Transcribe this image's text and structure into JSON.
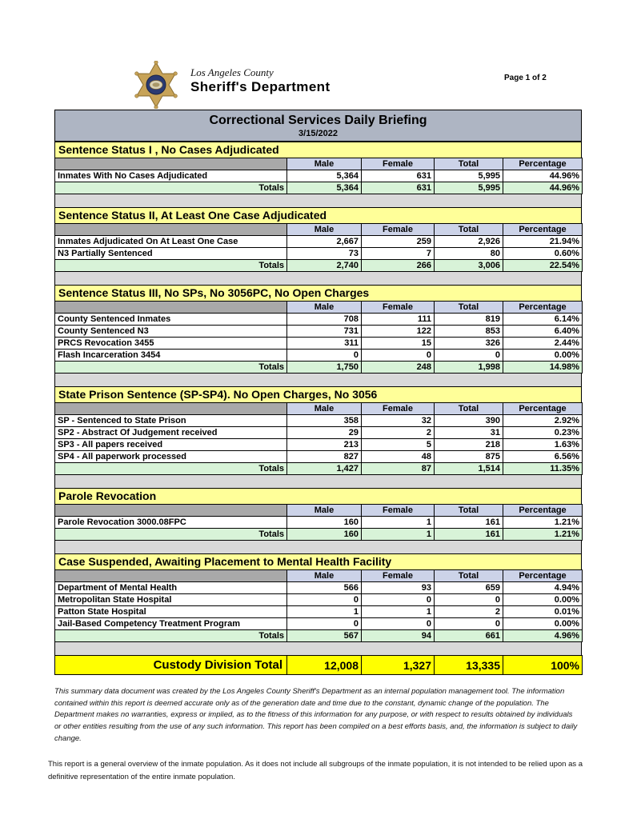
{
  "header": {
    "logo": "la-county-sheriff-star-badge",
    "agency_line1": "Los Angeles County",
    "agency_line2": "Sheriff's Department",
    "page_label": "Page 1 of 2"
  },
  "report": {
    "title": "Correctional Services Daily Briefing",
    "date": "3/15/2022",
    "columns": [
      "Male",
      "Female",
      "Total",
      "Percentage"
    ],
    "totals_label": "Totals",
    "sections": [
      {
        "title": "Sentence Status I , No Cases Adjudicated",
        "rows": [
          {
            "label": "Inmates With No Cases Adjudicated",
            "male": "5,364",
            "female": "631",
            "total": "5,995",
            "percentage": "44.96%"
          }
        ],
        "totals": {
          "male": "5,364",
          "female": "631",
          "total": "5,995",
          "percentage": "44.96%"
        }
      },
      {
        "title": "Sentence Status II, At Least One Case Adjudicated",
        "rows": [
          {
            "label": "Inmates Adjudicated On At Least One Case",
            "male": "2,667",
            "female": "259",
            "total": "2,926",
            "percentage": "21.94%"
          },
          {
            "label": "N3 Partially Sentenced",
            "male": "73",
            "female": "7",
            "total": "80",
            "percentage": "0.60%"
          }
        ],
        "totals": {
          "male": "2,740",
          "female": "266",
          "total": "3,006",
          "percentage": "22.54%"
        }
      },
      {
        "title": "Sentence Status III, No SPs, No 3056PC, No Open Charges",
        "rows": [
          {
            "label": "County Sentenced Inmates",
            "male": "708",
            "female": "111",
            "total": "819",
            "percentage": "6.14%"
          },
          {
            "label": "County Sentenced N3",
            "male": "731",
            "female": "122",
            "total": "853",
            "percentage": "6.40%"
          },
          {
            "label": "PRCS Revocation 3455",
            "male": "311",
            "female": "15",
            "total": "326",
            "percentage": "2.44%"
          },
          {
            "label": "Flash Incarceration 3454",
            "male": "0",
            "female": "0",
            "total": "0",
            "percentage": "0.00%"
          }
        ],
        "totals": {
          "male": "1,750",
          "female": "248",
          "total": "1,998",
          "percentage": "14.98%"
        }
      },
      {
        "title": "State Prison Sentence (SP-SP4). No Open Charges, No 3056",
        "rows": [
          {
            "label": "SP - Sentenced to State Prison",
            "male": "358",
            "female": "32",
            "total": "390",
            "percentage": "2.92%"
          },
          {
            "label": "SP2 - Abstract Of Judgement received",
            "male": "29",
            "female": "2",
            "total": "31",
            "percentage": "0.23%"
          },
          {
            "label": "SP3 - All papers received",
            "male": "213",
            "female": "5",
            "total": "218",
            "percentage": "1.63%"
          },
          {
            "label": "SP4 - All paperwork processed",
            "male": "827",
            "female": "48",
            "total": "875",
            "percentage": "6.56%"
          }
        ],
        "totals": {
          "male": "1,427",
          "female": "87",
          "total": "1,514",
          "percentage": "11.35%"
        }
      },
      {
        "title": "Parole Revocation",
        "rows": [
          {
            "label": "Parole Revocation 3000.08FPC",
            "male": "160",
            "female": "1",
            "total": "161",
            "percentage": "1.21%"
          }
        ],
        "totals": {
          "male": "160",
          "female": "1",
          "total": "161",
          "percentage": "1.21%"
        }
      },
      {
        "title": "Case Suspended, Awaiting Placement to Mental Health Facility",
        "rows": [
          {
            "label": "Department of Mental Health",
            "male": "566",
            "female": "93",
            "total": "659",
            "percentage": "4.94%"
          },
          {
            "label": "Metropolitan State Hospital",
            "male": "0",
            "female": "0",
            "total": "0",
            "percentage": "0.00%"
          },
          {
            "label": "Patton State Hospital",
            "male": "1",
            "female": "1",
            "total": "2",
            "percentage": "0.01%"
          },
          {
            "label": "Jail-Based Competency Treatment Program",
            "male": "0",
            "female": "0",
            "total": "0",
            "percentage": "0.00%"
          }
        ],
        "totals": {
          "male": "567",
          "female": "94",
          "total": "661",
          "percentage": "4.96%"
        }
      }
    ],
    "grand_total": {
      "label": "Custody Division Total",
      "male": "12,008",
      "female": "1,327",
      "total": "13,335",
      "percentage": "100%"
    }
  },
  "footer": {
    "disclaimer": "This summary data document was created by the Los Angeles County Sheriff's Department as an internal population management tool.  The information contained within this report is deemed accurate only as of the generation date and time due to the constant, dynamic change of the population.  The Department makes no warranties, express or implied, as to the fitness of this information for any purpose, or with respect to results obtained by individuals or other entities resulting from the use of any such information.  This report has been compiled on a best efforts basis, and, the information is subject to daily change.",
    "note": "This report is a general overview of the inmate population.  As it does not include all subgroups of the inmate population, it is not intended to be relied upon as a definitive representation of the entire inmate population."
  },
  "colors": {
    "title_bar_bg": "#AEB5C3",
    "section_header_bg": "#FFFF99",
    "column_header_bg": "#CCD3E8",
    "totals_row_bg": "#D8F3D8",
    "grand_total_bg": "#FFFF00",
    "spacer_bg": "#D9D9D9",
    "header_spacer_cell_bg": "#A9A9A9",
    "badge_gold": "#C7A358",
    "badge_navy": "#2A3A72"
  }
}
